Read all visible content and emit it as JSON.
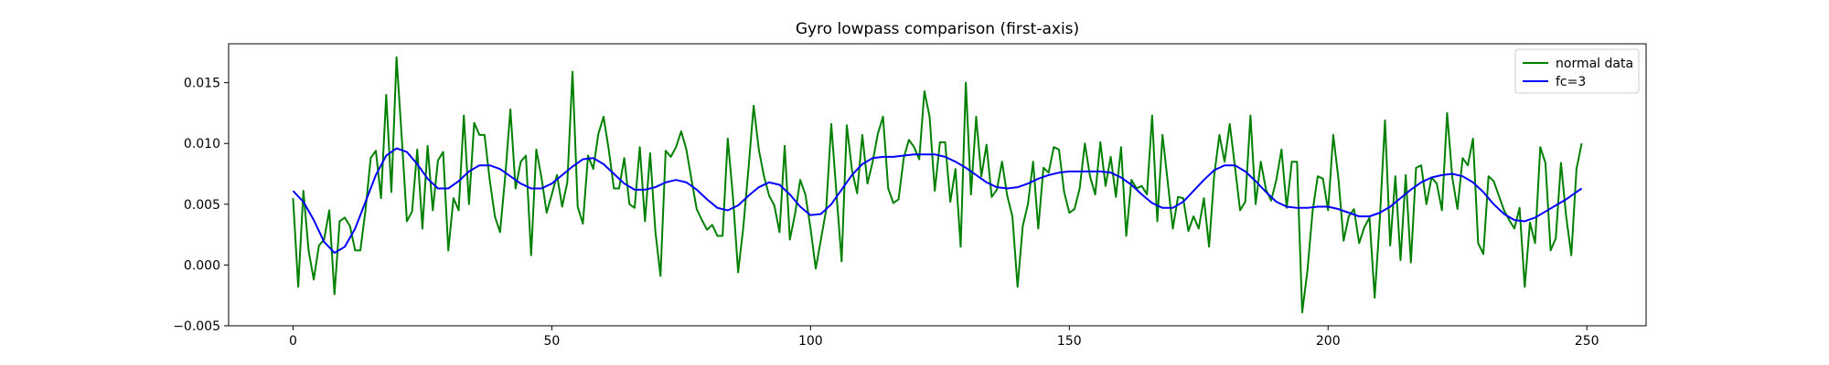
{
  "chart_data": {
    "type": "line",
    "title": "Gyro lowpass comparison (first-axis)",
    "xlabel": "",
    "ylabel": "",
    "xlim": [
      -12.45,
      261.45
    ],
    "ylim": [
      -0.005,
      0.0182
    ],
    "xticks": [
      0,
      50,
      100,
      150,
      200,
      250
    ],
    "xtick_labels": [
      "0",
      "50",
      "100",
      "150",
      "200",
      "250"
    ],
    "yticks": [
      -0.005,
      0.0,
      0.005,
      0.01,
      0.015
    ],
    "ytick_labels": [
      "−0.005",
      "0.000",
      "0.005",
      "0.010",
      "0.015"
    ],
    "grid": false,
    "legend_position": "top-right",
    "series": [
      {
        "name": "normal data",
        "color": "#008000",
        "x": [
          0,
          1,
          2,
          3,
          4,
          5,
          6,
          7,
          8,
          9,
          10,
          11,
          12,
          13,
          14,
          15,
          16,
          17,
          18,
          19,
          20,
          21,
          22,
          23,
          24,
          25,
          26,
          27,
          28,
          29,
          30,
          31,
          32,
          33,
          34,
          35,
          36,
          37,
          38,
          39,
          40,
          41,
          42,
          43,
          44,
          45,
          46,
          47,
          48,
          49,
          50,
          51,
          52,
          53,
          54,
          55,
          56,
          57,
          58,
          59,
          60,
          61,
          62,
          63,
          64,
          65,
          66,
          67,
          68,
          69,
          70,
          71,
          72,
          73,
          74,
          75,
          76,
          77,
          78,
          79,
          80,
          81,
          82,
          83,
          84,
          85,
          86,
          87,
          88,
          89,
          90,
          91,
          92,
          93,
          94,
          95,
          96,
          97,
          98,
          99,
          100,
          101,
          102,
          103,
          104,
          105,
          106,
          107,
          108,
          109,
          110,
          111,
          112,
          113,
          114,
          115,
          116,
          117,
          118,
          119,
          120,
          121,
          122,
          123,
          124,
          125,
          126,
          127,
          128,
          129,
          130,
          131,
          132,
          133,
          134,
          135,
          136,
          137,
          138,
          139,
          140,
          141,
          142,
          143,
          144,
          145,
          146,
          147,
          148,
          149,
          150,
          151,
          152,
          153,
          154,
          155,
          156,
          157,
          158,
          159,
          160,
          161,
          162,
          163,
          164,
          165,
          166,
          167,
          168,
          169,
          170,
          171,
          172,
          173,
          174,
          175,
          176,
          177,
          178,
          179,
          180,
          181,
          182,
          183,
          184,
          185,
          186,
          187,
          188,
          189,
          190,
          191,
          192,
          193,
          194,
          195,
          196,
          197,
          198,
          199,
          200,
          201,
          202,
          203,
          204,
          205,
          206,
          207,
          208,
          209,
          210,
          211,
          212,
          213,
          214,
          215,
          216,
          217,
          218,
          219,
          220,
          221,
          222,
          223,
          224,
          225,
          226,
          227,
          228,
          229,
          230,
          231,
          232,
          233,
          234,
          235,
          236,
          237,
          238,
          239,
          240,
          241,
          242,
          243,
          244,
          245,
          246,
          247,
          248,
          249
        ],
        "y": [
          0.0055,
          -0.0018,
          0.0061,
          0.0012,
          -0.0012,
          0.0016,
          0.0021,
          0.0045,
          -0.0024,
          0.0036,
          0.0039,
          0.0032,
          0.0012,
          0.0012,
          0.0045,
          0.0088,
          0.0094,
          0.0055,
          0.014,
          0.006,
          0.0171,
          0.0105,
          0.0036,
          0.0044,
          0.0095,
          0.003,
          0.0098,
          0.0045,
          0.0086,
          0.0093,
          0.0012,
          0.0055,
          0.0045,
          0.0123,
          0.005,
          0.0117,
          0.0107,
          0.0107,
          0.007,
          0.004,
          0.0027,
          0.0073,
          0.0128,
          0.0063,
          0.0085,
          0.009,
          0.0008,
          0.0095,
          0.0072,
          0.0043,
          0.0058,
          0.0074,
          0.0048,
          0.0068,
          0.0159,
          0.0048,
          0.0034,
          0.009,
          0.0079,
          0.0108,
          0.0122,
          0.0095,
          0.0063,
          0.0063,
          0.0088,
          0.005,
          0.0047,
          0.0097,
          0.0036,
          0.0092,
          0.0028,
          -0.0009,
          0.0094,
          0.0089,
          0.0097,
          0.011,
          0.0095,
          0.007,
          0.0046,
          0.0037,
          0.0029,
          0.0033,
          0.0024,
          0.0024,
          0.0104,
          0.0056,
          -0.0006,
          0.0031,
          0.0079,
          0.0131,
          0.0095,
          0.0073,
          0.0057,
          0.0049,
          0.0027,
          0.0098,
          0.0021,
          0.0042,
          0.007,
          0.0058,
          0.003,
          -0.0003,
          0.0021,
          0.0045,
          0.0116,
          0.0059,
          0.0003,
          0.0115,
          0.0078,
          0.0059,
          0.0107,
          0.0067,
          0.0085,
          0.0108,
          0.0122,
          0.0063,
          0.0051,
          0.0054,
          0.0088,
          0.0103,
          0.0097,
          0.0087,
          0.0143,
          0.0122,
          0.0061,
          0.0101,
          0.0101,
          0.0052,
          0.0079,
          0.0015,
          0.015,
          0.0058,
          0.0122,
          0.0073,
          0.0099,
          0.0056,
          0.0062,
          0.0085,
          0.0057,
          0.004,
          -0.0018,
          0.0032,
          0.005,
          0.0085,
          0.003,
          0.008,
          0.0076,
          0.0097,
          0.0095,
          0.006,
          0.0043,
          0.0046,
          0.0063,
          0.01,
          0.0073,
          0.0058,
          0.0101,
          0.0065,
          0.0089,
          0.0056,
          0.0097,
          0.0024,
          0.007,
          0.0063,
          0.0065,
          0.0058,
          0.0123,
          0.0036,
          0.0107,
          0.0069,
          0.003,
          0.0056,
          0.0055,
          0.0028,
          0.004,
          0.003,
          0.0055,
          0.0015,
          0.0074,
          0.0107,
          0.0085,
          0.0116,
          0.0081,
          0.0045,
          0.0052,
          0.0123,
          0.005,
          0.0085,
          0.0062,
          0.0053,
          0.007,
          0.0095,
          0.0047,
          0.0085,
          0.0085,
          -0.0039,
          -0.0005,
          0.0044,
          0.0073,
          0.0071,
          0.0045,
          0.0107,
          0.0071,
          0.002,
          0.004,
          0.0046,
          0.0018,
          0.0031,
          0.0039,
          -0.0027,
          0.0038,
          0.0119,
          0.0016,
          0.0073,
          0.0004,
          0.0074,
          0.0002,
          0.008,
          0.0082,
          0.005,
          0.0072,
          0.0067,
          0.0045,
          0.0125,
          0.0072,
          0.0046,
          0.0088,
          0.0082,
          0.0104,
          0.0018,
          0.0009,
          0.0073,
          0.0069,
          0.0057,
          0.0045,
          0.0037,
          0.003,
          0.0047,
          -0.0018,
          0.0035,
          0.0018,
          0.0097,
          0.0084,
          0.0012,
          0.0022,
          0.0084,
          0.004,
          0.0008,
          0.0079,
          0.01
        ]
      },
      {
        "name": "fc=3",
        "color": "#0000ff",
        "x": [
          0,
          2,
          4,
          6,
          8,
          10,
          12,
          14,
          16,
          18,
          20,
          22,
          24,
          26,
          28,
          30,
          32,
          34,
          36,
          38,
          40,
          42,
          44,
          46,
          48,
          50,
          52,
          54,
          56,
          58,
          60,
          62,
          64,
          66,
          68,
          70,
          72,
          74,
          76,
          78,
          80,
          82,
          84,
          86,
          88,
          90,
          92,
          94,
          96,
          98,
          100,
          102,
          104,
          106,
          108,
          110,
          112,
          114,
          116,
          118,
          120,
          122,
          124,
          126,
          128,
          130,
          132,
          134,
          136,
          138,
          140,
          142,
          144,
          146,
          148,
          150,
          152,
          154,
          156,
          158,
          160,
          162,
          164,
          166,
          168,
          170,
          172,
          174,
          176,
          178,
          180,
          182,
          184,
          186,
          188,
          190,
          192,
          194,
          196,
          198,
          200,
          202,
          204,
          206,
          208,
          210,
          212,
          214,
          216,
          218,
          220,
          222,
          224,
          226,
          228,
          230,
          232,
          234,
          236,
          238,
          240,
          242,
          244,
          246,
          248,
          249
        ],
        "y": [
          0.0061,
          0.0052,
          0.0037,
          0.0019,
          0.001,
          0.0015,
          0.003,
          0.0052,
          0.0074,
          0.009,
          0.0096,
          0.0093,
          0.0083,
          0.0071,
          0.0063,
          0.0063,
          0.0069,
          0.0077,
          0.0082,
          0.0082,
          0.0079,
          0.0073,
          0.0067,
          0.0063,
          0.0063,
          0.0067,
          0.0074,
          0.0081,
          0.0087,
          0.0088,
          0.0083,
          0.0075,
          0.0067,
          0.0062,
          0.0062,
          0.0064,
          0.0068,
          0.007,
          0.0068,
          0.0062,
          0.0054,
          0.0047,
          0.0045,
          0.0049,
          0.0057,
          0.0064,
          0.0068,
          0.0066,
          0.0058,
          0.0048,
          0.0041,
          0.0042,
          0.005,
          0.0062,
          0.0074,
          0.0083,
          0.0088,
          0.0089,
          0.0089,
          0.009,
          0.0091,
          0.0091,
          0.0091,
          0.0089,
          0.0085,
          0.008,
          0.0074,
          0.0068,
          0.0064,
          0.0063,
          0.0064,
          0.0067,
          0.0071,
          0.0074,
          0.0076,
          0.0077,
          0.0077,
          0.0077,
          0.0077,
          0.0076,
          0.0072,
          0.0066,
          0.0058,
          0.0051,
          0.0047,
          0.0047,
          0.0052,
          0.0061,
          0.007,
          0.0078,
          0.0082,
          0.0082,
          0.0077,
          0.0069,
          0.006,
          0.0052,
          0.0048,
          0.0047,
          0.0047,
          0.0048,
          0.0048,
          0.0046,
          0.0043,
          0.004,
          0.004,
          0.0043,
          0.0048,
          0.0055,
          0.0062,
          0.0068,
          0.0072,
          0.0074,
          0.0075,
          0.0073,
          0.0068,
          0.006,
          0.005,
          0.0042,
          0.0037,
          0.0036,
          0.0039,
          0.0044,
          0.0049,
          0.0054,
          0.006,
          0.0063
        ]
      }
    ]
  }
}
